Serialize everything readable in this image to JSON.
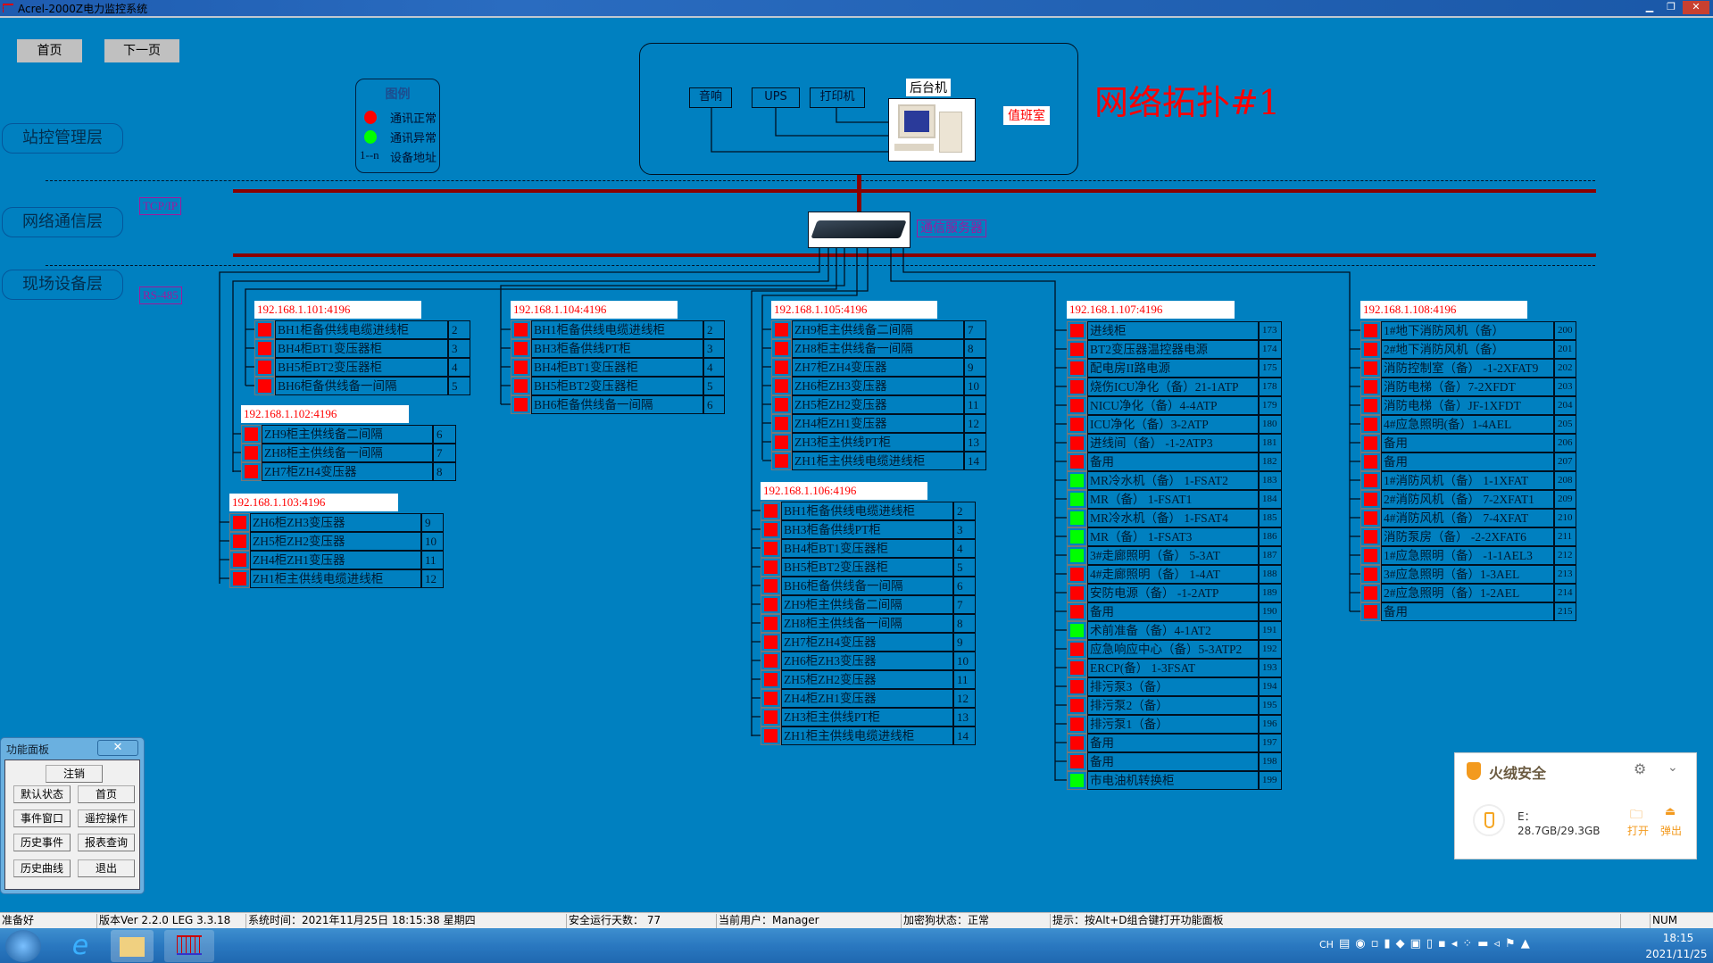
{
  "window": {
    "title": "Acrel-2000Z电力监控系统"
  },
  "nav": {
    "home": "首页",
    "next": "下一页"
  },
  "layers": {
    "station": "站控管理层",
    "network": "网络通信层",
    "field": "现场设备层"
  },
  "protocols": {
    "tcp": "TCP/IP",
    "rs485": "RS-485"
  },
  "legend": {
    "title": "图例",
    "normal": "通讯正常",
    "abnormal": "通讯异常",
    "addr_key": "1--n",
    "addr": "设备地址"
  },
  "colors": {
    "normal": "#ff0000",
    "abnormal": "#00ff00",
    "background": "#0080c0",
    "bus": "#8b0000"
  },
  "topology": {
    "title": "网络拓扑#1",
    "speaker": "音响",
    "ups": "UPS",
    "printer": "打印机",
    "host": "后台机",
    "duty_room": "值班室",
    "comm_server": "通信服务器"
  },
  "groups": [
    {
      "id": "g101",
      "address": "192.168.1.101:4196",
      "rows": [
        {
          "name": "BH1柜备供线电缆进线柜",
          "addr": "2",
          "status": "normal"
        },
        {
          "name": "BH4柜BT1变压器柜",
          "addr": "3",
          "status": "normal"
        },
        {
          "name": "BH5柜BT2变压器柜",
          "addr": "4",
          "status": "normal"
        },
        {
          "name": "BH6柜备供线备一间隔",
          "addr": "5",
          "status": "normal"
        }
      ]
    },
    {
      "id": "g102",
      "address": "192.168.1.102:4196",
      "rows": [
        {
          "name": "ZH9柜主供线备二间隔",
          "addr": "6",
          "status": "normal"
        },
        {
          "name": "ZH8柜主供线备一间隔",
          "addr": "7",
          "status": "normal"
        },
        {
          "name": "ZH7柜ZH4变压器",
          "addr": "8",
          "status": "normal"
        }
      ]
    },
    {
      "id": "g103",
      "address": "192.168.1.103:4196",
      "rows": [
        {
          "name": "ZH6柜ZH3变压器",
          "addr": "9",
          "status": "normal"
        },
        {
          "name": "ZH5柜ZH2变压器",
          "addr": "10",
          "status": "normal"
        },
        {
          "name": "ZH4柜ZH1变压器",
          "addr": "11",
          "status": "normal"
        },
        {
          "name": "ZH1柜主供线电缆进线柜",
          "addr": "12",
          "status": "normal"
        }
      ]
    },
    {
      "id": "g104",
      "address": "192.168.1.104:4196",
      "rows": [
        {
          "name": "BH1柜备供线电缆进线柜",
          "addr": "2",
          "status": "normal"
        },
        {
          "name": "BH3柜备供线PT柜",
          "addr": "3",
          "status": "normal"
        },
        {
          "name": "BH4柜BT1变压器柜",
          "addr": "4",
          "status": "normal"
        },
        {
          "name": "BH5柜BT2变压器柜",
          "addr": "5",
          "status": "normal"
        },
        {
          "name": "BH6柜备供线备一间隔",
          "addr": "6",
          "status": "normal"
        }
      ]
    },
    {
      "id": "g105",
      "address": "192.168.1.105:4196",
      "rows": [
        {
          "name": "ZH9柜主供线备二间隔",
          "addr": "7",
          "status": "normal"
        },
        {
          "name": "ZH8柜主供线备一间隔",
          "addr": "8",
          "status": "normal"
        },
        {
          "name": "ZH7柜ZH4变压器",
          "addr": "9",
          "status": "normal"
        },
        {
          "name": "ZH6柜ZH3变压器",
          "addr": "10",
          "status": "normal"
        },
        {
          "name": "ZH5柜ZH2变压器",
          "addr": "11",
          "status": "normal"
        },
        {
          "name": "ZH4柜ZH1变压器",
          "addr": "12",
          "status": "normal"
        },
        {
          "name": "ZH3柜主供线PT柜",
          "addr": "13",
          "status": "normal"
        },
        {
          "name": "ZH1柜主供线电缆进线柜",
          "addr": "14",
          "status": "normal"
        }
      ]
    },
    {
      "id": "g106",
      "address": "192.168.1.106:4196",
      "rows": [
        {
          "name": "BH1柜备供线电缆进线柜",
          "addr": "2",
          "status": "normal"
        },
        {
          "name": "BH3柜备供线PT柜",
          "addr": "3",
          "status": "normal"
        },
        {
          "name": "BH4柜BT1变压器柜",
          "addr": "4",
          "status": "normal"
        },
        {
          "name": "BH5柜BT2变压器柜",
          "addr": "5",
          "status": "normal"
        },
        {
          "name": "BH6柜备供线备一间隔",
          "addr": "6",
          "status": "normal"
        },
        {
          "name": "ZH9柜主供线备二间隔",
          "addr": "7",
          "status": "normal"
        },
        {
          "name": "ZH8柜主供线备一间隔",
          "addr": "8",
          "status": "normal"
        },
        {
          "name": "ZH7柜ZH4变压器",
          "addr": "9",
          "status": "normal"
        },
        {
          "name": "ZH6柜ZH3变压器",
          "addr": "10",
          "status": "normal"
        },
        {
          "name": "ZH5柜ZH2变压器",
          "addr": "11",
          "status": "normal"
        },
        {
          "name": "ZH4柜ZH1变压器",
          "addr": "12",
          "status": "normal"
        },
        {
          "name": "ZH3柜主供线PT柜",
          "addr": "13",
          "status": "normal"
        },
        {
          "name": "ZH1柜主供线电缆进线柜",
          "addr": "14",
          "status": "normal"
        }
      ]
    },
    {
      "id": "g107",
      "address": "192.168.1.107:4196",
      "rows": [
        {
          "name": "进线柜",
          "addr": "173",
          "status": "normal"
        },
        {
          "name": "BT2变压器温控器电源",
          "addr": "174",
          "status": "normal"
        },
        {
          "name": "配电房II路电源",
          "addr": "175",
          "status": "normal"
        },
        {
          "name": "烧伤ICU净化（备）21-1ATP",
          "addr": "178",
          "status": "normal"
        },
        {
          "name": "NICU净化（备）4-4ATP",
          "addr": "179",
          "status": "normal"
        },
        {
          "name": "ICU净化（备）3-2ATP",
          "addr": "180",
          "status": "normal"
        },
        {
          "name": "进线间（备） -1-2ATP3",
          "addr": "181",
          "status": "normal"
        },
        {
          "name": "备用",
          "addr": "182",
          "status": "normal"
        },
        {
          "name": "MR冷水机（备） 1-FSAT2",
          "addr": "183",
          "status": "abnormal"
        },
        {
          "name": "MR（备） 1-FSAT1",
          "addr": "184",
          "status": "abnormal"
        },
        {
          "name": "MR冷水机（备） 1-FSAT4",
          "addr": "185",
          "status": "abnormal"
        },
        {
          "name": "MR（备） 1-FSAT3",
          "addr": "186",
          "status": "abnormal"
        },
        {
          "name": "3#走廊照明（备） 5-3AT",
          "addr": "187",
          "status": "abnormal"
        },
        {
          "name": "4#走廊照明（备） 1-4AT",
          "addr": "188",
          "status": "normal"
        },
        {
          "name": "安防电源（备） -1-2ATP",
          "addr": "189",
          "status": "normal"
        },
        {
          "name": "备用",
          "addr": "190",
          "status": "normal"
        },
        {
          "name": "术前准备（备）4-1AT2",
          "addr": "191",
          "status": "abnormal"
        },
        {
          "name": "应急响应中心（备）5-3ATP2",
          "addr": "192",
          "status": "normal"
        },
        {
          "name": "ERCP(备） 1-3FSAT",
          "addr": "193",
          "status": "normal"
        },
        {
          "name": "排污泵3（备）",
          "addr": "194",
          "status": "normal"
        },
        {
          "name": "排污泵2（备）",
          "addr": "195",
          "status": "normal"
        },
        {
          "name": "排污泵1（备）",
          "addr": "196",
          "status": "normal"
        },
        {
          "name": "备用",
          "addr": "197",
          "status": "normal"
        },
        {
          "name": "备用",
          "addr": "198",
          "status": "normal"
        },
        {
          "name": "市电油机转换柜",
          "addr": "199",
          "status": "abnormal"
        }
      ]
    },
    {
      "id": "g108",
      "address": "192.168.1.108:4196",
      "rows": [
        {
          "name": "1#地下消防风机（备）",
          "addr": "200",
          "status": "normal"
        },
        {
          "name": "2#地下消防风机（备）",
          "addr": "201",
          "status": "normal"
        },
        {
          "name": "消防控制室（备） -1-2XFAT9",
          "addr": "202",
          "status": "normal"
        },
        {
          "name": "消防电梯（备）7-2XFDT",
          "addr": "203",
          "status": "normal"
        },
        {
          "name": "消防电梯（备）JF-1XFDT",
          "addr": "204",
          "status": "normal"
        },
        {
          "name": "4#应急照明(备）1-4AEL",
          "addr": "205",
          "status": "normal"
        },
        {
          "name": "备用",
          "addr": "206",
          "status": "normal"
        },
        {
          "name": "备用",
          "addr": "207",
          "status": "normal"
        },
        {
          "name": "1#消防风机（备） 1-1XFAT",
          "addr": "208",
          "status": "normal"
        },
        {
          "name": "2#消防风机（备） 7-2XFAT1",
          "addr": "209",
          "status": "normal"
        },
        {
          "name": "4#消防风机（备） 7-4XFAT",
          "addr": "210",
          "status": "normal"
        },
        {
          "name": "消防泵房（备） -2-2XFAT6",
          "addr": "211",
          "status": "normal"
        },
        {
          "name": "1#应急照明（备） -1-1AEL3",
          "addr": "212",
          "status": "normal"
        },
        {
          "name": "3#应急照明（备）1-3AEL",
          "addr": "213",
          "status": "normal"
        },
        {
          "name": "2#应急照明（备）1-2AEL",
          "addr": "214",
          "status": "normal"
        },
        {
          "name": "备用",
          "addr": "215",
          "status": "normal"
        }
      ]
    }
  ],
  "func_panel": {
    "title": "功能面板",
    "close": "✕",
    "logout": "注销",
    "default_state": "默认状态",
    "home": "首页",
    "event_window": "事件窗口",
    "remote_control": "遥控操作",
    "history_events": "历史事件",
    "report_query": "报表查询",
    "history_curve": "历史曲线",
    "exit": "退出"
  },
  "statusbar": {
    "ready": "准备好",
    "version": "版本Ver 2.2.0 LEG 3.3.18",
    "system_time": "系统时间：2021年11月25日  18:15:38   星期四",
    "safe_days": "安全运行天数：  77",
    "current_user": "当前用户：Manager",
    "dongle": "加密狗状态：正常",
    "hint": "提示：按Alt+D组合键打开功能面板",
    "num": "NUM"
  },
  "taskbar": {
    "lang": "CH",
    "time": "18:15",
    "date": "2021/11/25"
  },
  "security_popup": {
    "brand": "火绒安全",
    "drive": "E：",
    "capacity": "28.7GB/29.3GB",
    "open": "打开",
    "eject": "弹出"
  }
}
